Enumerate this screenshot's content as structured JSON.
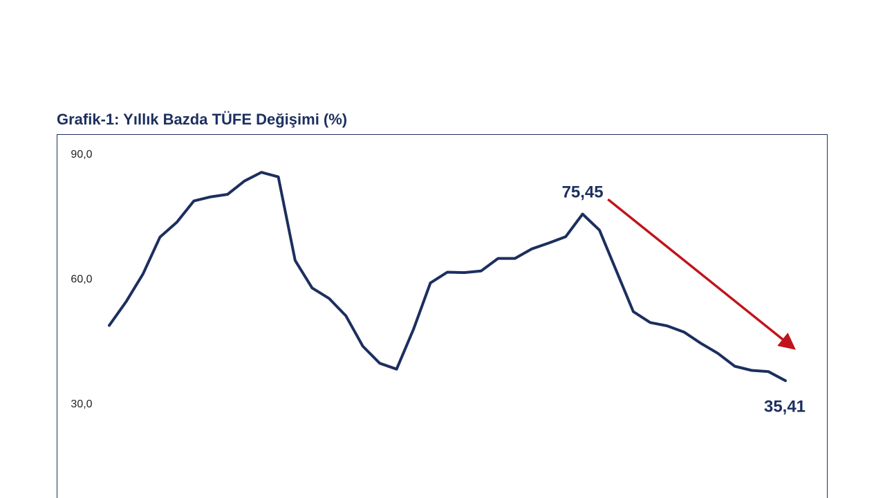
{
  "chart_data": {
    "type": "line",
    "title": "Grafik-1: Yıllık Bazda TÜFE Değişimi (%)",
    "xlabel": "",
    "ylabel": "",
    "ylim": [
      20,
      90
    ],
    "yticks": [
      "90,0",
      "60,0",
      "30,0"
    ],
    "ytick_values": [
      90,
      60,
      30
    ],
    "grid": false,
    "legend": "none",
    "colors": {
      "line": "#1c2f5e",
      "arrow": "#c0141c",
      "frame": "#1c2f5e"
    },
    "series": [
      {
        "values": [
          48.7,
          54.4,
          61.1,
          69.9,
          73.5,
          78.6,
          79.6,
          80.2,
          83.4,
          85.5,
          84.4,
          64.3,
          57.7,
          55.2,
          51.0,
          43.7,
          39.6,
          38.2,
          47.8,
          58.9,
          61.5,
          61.4,
          61.8,
          64.8,
          64.8,
          67.1,
          68.5,
          70.0,
          75.45,
          71.6,
          61.8,
          52.0,
          49.4,
          48.6,
          47.1,
          44.4,
          42.0,
          38.9,
          37.9,
          37.6,
          35.41
        ]
      }
    ],
    "annotations": [
      {
        "label": "75,45",
        "index": 28,
        "value": 75.45
      },
      {
        "label": "35,41",
        "index": 40,
        "value": 35.41
      }
    ],
    "trend_arrow": {
      "from_index": 29.5,
      "from_value": 79.0,
      "to_index": 40.5,
      "to_value": 43.2
    }
  }
}
